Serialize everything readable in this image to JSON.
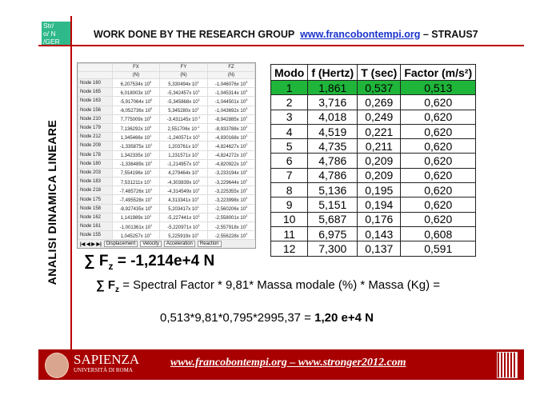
{
  "logo": {
    "lines": [
      "Str/",
      "o/ N",
      "/GER"
    ]
  },
  "header": {
    "title": "WORK DONE BY THE RESEARCH GROUP",
    "link": "www.francobontempi.org",
    "suffix": "– STRAUS7"
  },
  "side_title": "ANALISI DINAMICA LINEARE",
  "reaction_table": {
    "columns": [
      {
        "name": "FX",
        "unit": "(N)"
      },
      {
        "name": "FY",
        "unit": "(N)"
      },
      {
        "name": "FZ",
        "unit": "(N)"
      }
    ],
    "rows": [
      [
        "Node 160",
        "6,207534x 10",
        "0",
        "5,330494x 10",
        "1",
        "-1,046076x 10",
        "3"
      ],
      [
        "Node 165",
        "6,018003x 10",
        "0",
        "-5,342457x 10",
        "1",
        "-1,045314x 10",
        "3"
      ],
      [
        "Node 163",
        "-5,917064x 10",
        "0",
        "-5,345868x 10",
        "1",
        "-1,044501x 10",
        "3"
      ],
      [
        "Node 156",
        "-6,052736x 10",
        "0",
        "5,345280x 10",
        "1",
        "-1,043692x 10",
        "3"
      ],
      [
        "Node 210",
        "7,775009x 10",
        "0",
        "-3,431145x 10",
        "-1",
        "-8,942885x 10",
        "2"
      ],
      [
        "Node 179",
        "7,136292x 10",
        "0",
        "2,551706x 10",
        "-1",
        "-8,933788x 10",
        "2"
      ],
      [
        "Node 212",
        "1,345466x 10",
        "1",
        "-1,240571x 10",
        "1",
        "-4,830168x 10",
        "2"
      ],
      [
        "Node 209",
        "-1,335875x 10",
        "1",
        "1,203761x 10",
        "1",
        "-4,824627x 10",
        "2"
      ],
      [
        "Node 178",
        "1,342335x 10",
        "1",
        "1,231571x 10",
        "1",
        "-4,824272x 10",
        "2"
      ],
      [
        "Node 180",
        "-1,336489x 10",
        "1",
        "-1,214957x 10",
        "1",
        "-4,820922x 10",
        "2"
      ],
      [
        "Node 203",
        "7,554196x 10",
        "1",
        "4,279464x 10",
        "1",
        "-3,233194x 10",
        "2"
      ],
      [
        "Node 183",
        "7,531211x 10",
        "1",
        "-4,303839x 10",
        "1",
        "-3,229644x 10",
        "2"
      ],
      [
        "Node 218",
        "-7,485726x 10",
        "1",
        "-4,314549x 10",
        "1",
        "-3,225355x 10",
        "2"
      ],
      [
        "Node 175",
        "-7,495528x 10",
        "1",
        "4,313341x 10",
        "1",
        "-3,223998x 10",
        "2"
      ],
      [
        "Node 158",
        "-8,927435x 10",
        "0",
        "5,203417x 10",
        "1",
        "-2,560206x 10",
        "2"
      ],
      [
        "Node 162",
        "1,141989x 10",
        "1",
        "-5,227441x 10",
        "1",
        "-2,558001x 10",
        "2"
      ],
      [
        "Node 161",
        "-1,001361x 10",
        "1",
        "-5,220971x 10",
        "1",
        "-2,557918x 10",
        "2"
      ],
      [
        "Node 155",
        "1,045257x 10",
        "1",
        "5,225919x 10",
        "1",
        "-2,556228x 10",
        "2"
      ]
    ],
    "nav": "|◀ ◀ ▶ ▶|",
    "tabs": [
      "Displacement",
      "Velocity",
      "Acceleration",
      "Reaction"
    ]
  },
  "modes_table": {
    "headers": [
      "Modo",
      "f (Hertz)",
      "T (sec)",
      "Factor (m/s²)"
    ],
    "highlight_color": "#1fb53a",
    "rows": [
      [
        "1",
        "1,861",
        "0,537",
        "0,513"
      ],
      [
        "2",
        "3,716",
        "0,269",
        "0,620"
      ],
      [
        "3",
        "4,018",
        "0,249",
        "0,620"
      ],
      [
        "4",
        "4,519",
        "0,221",
        "0,620"
      ],
      [
        "5",
        "4,735",
        "0,211",
        "0,620"
      ],
      [
        "6",
        "4,786",
        "0,209",
        "0,620"
      ],
      [
        "7",
        "4,786",
        "0,209",
        "0,620"
      ],
      [
        "8",
        "5,136",
        "0,195",
        "0,620"
      ],
      [
        "9",
        "5,151",
        "0,194",
        "0,620"
      ],
      [
        "10",
        "5,687",
        "0,176",
        "0,620"
      ],
      [
        "11",
        "6,975",
        "0,143",
        "0,608"
      ],
      [
        "12",
        "7,300",
        "0,137",
        "0,591"
      ]
    ]
  },
  "sum_fz": {
    "symbol": "∑ F",
    "sub": "z",
    "value": " = -1,214e+4 N"
  },
  "formula": {
    "symbol": "∑ F",
    "sub": "z",
    "text": " = Spectral Factor * 9,81* Massa modale (%) * Massa (Kg) ="
  },
  "calculation": {
    "expr": "0,513*9,81*0,795*2995,37 = ",
    "result": "1,20 e+4 N"
  },
  "footer": {
    "university": "SAPIENZA",
    "subtitle": "UNIVERSITÀ DI ROMA",
    "links": "www.francobontempi.org – www.stronger2012.com"
  }
}
